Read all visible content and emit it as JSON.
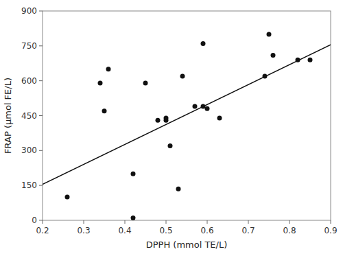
{
  "chart_data": {
    "type": "scatter",
    "xlabel": "DPPH (mmol TE/L)",
    "ylabel": "FRAP (μmol FE/L)",
    "xlim": [
      0.2,
      0.9
    ],
    "ylim": [
      0,
      900
    ],
    "xticks": [
      0.2,
      0.3,
      0.4,
      0.5,
      0.6,
      0.7,
      0.8,
      0.9
    ],
    "yticks": [
      0,
      150,
      300,
      450,
      600,
      750,
      900
    ],
    "grid": false,
    "series": [
      {
        "type": "scatter",
        "color": "#111111",
        "x": [
          0.26,
          0.34,
          0.35,
          0.36,
          0.42,
          0.42,
          0.45,
          0.48,
          0.5,
          0.5,
          0.51,
          0.53,
          0.54,
          0.57,
          0.59,
          0.59,
          0.6,
          0.63,
          0.74,
          0.75,
          0.76,
          0.82,
          0.85
        ],
        "values": [
          100,
          590,
          470,
          650,
          200,
          10,
          590,
          430,
          430,
          440,
          320,
          135,
          620,
          490,
          760,
          490,
          480,
          440,
          620,
          800,
          710,
          690,
          690
        ]
      },
      {
        "type": "line",
        "color": "#111111",
        "x": [
          0.2,
          0.9
        ],
        "values": [
          155,
          755
        ]
      }
    ]
  }
}
